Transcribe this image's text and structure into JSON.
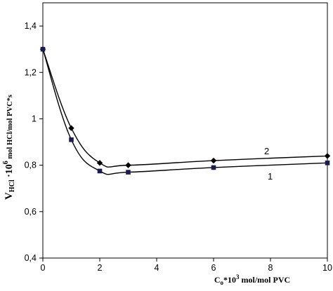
{
  "chart_data": {
    "type": "line",
    "x_ticks": [
      "0",
      "2",
      "4",
      "6",
      "8",
      "10"
    ],
    "y_ticks": [
      "0,4",
      "0,6",
      "0,8",
      "1",
      "1,2",
      "1,4"
    ],
    "xlim": [
      0,
      10
    ],
    "ylim": [
      0.4,
      1.5
    ],
    "xlabel": {
      "base": "C",
      "sub": "o",
      "middle": "*10",
      "sup": "3",
      "tail": " mol/mol PVC"
    },
    "ylabel": {
      "base": "V",
      "sub": "HCl",
      "middle": " ·10",
      "sup": "6",
      "tail": " mol HCl/mol PVC*s"
    },
    "grid": false,
    "series": [
      {
        "name": "2",
        "marker": "diamond",
        "color": "#000000",
        "points": [
          [
            0,
            1.3
          ],
          [
            1,
            0.96
          ],
          [
            2,
            0.81
          ],
          [
            3,
            0.8
          ],
          [
            6,
            0.82
          ],
          [
            10,
            0.84
          ]
        ]
      },
      {
        "name": "1",
        "marker": "square",
        "color": "#1b1b4d",
        "points": [
          [
            0,
            1.3
          ],
          [
            1,
            0.91
          ],
          [
            2,
            0.775
          ],
          [
            3,
            0.77
          ],
          [
            6,
            0.79
          ],
          [
            10,
            0.81
          ]
        ]
      }
    ]
  }
}
